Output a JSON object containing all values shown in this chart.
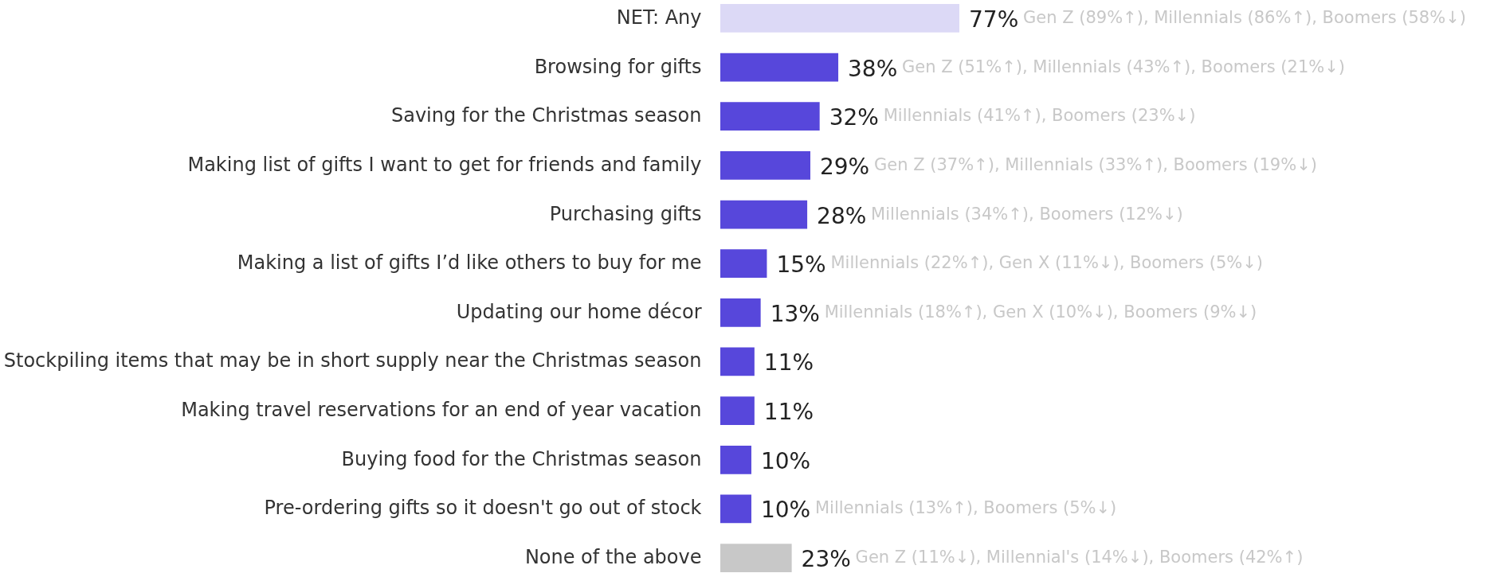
{
  "chart_data": {
    "type": "bar",
    "orientation": "horizontal",
    "categories": [
      "NET: Any",
      "Browsing for gifts",
      "Saving for the Christmas season",
      "Making list of gifts I want to get for friends and family",
      "Purchasing gifts",
      "Making a list of gifts I’d like others to buy for me",
      "Updating our home décor",
      "Stockpiling items that may be in short supply near the Christmas season",
      "Making travel reservations for an end of year vacation",
      "Buying food for the Christmas season",
      "Pre-ordering gifts so it doesn't go out of stock",
      "None of the above"
    ],
    "values": [
      77,
      38,
      32,
      29,
      28,
      15,
      13,
      11,
      11,
      10,
      10,
      23
    ],
    "value_labels": [
      "77%",
      "38%",
      "32%",
      "29%",
      "28%",
      "15%",
      "13%",
      "11%",
      "11%",
      "10%",
      "10%",
      "23%"
    ],
    "colors": [
      "#dcd9f6",
      "#5747db",
      "#5747db",
      "#5747db",
      "#5747db",
      "#5747db",
      "#5747db",
      "#5747db",
      "#5747db",
      "#5747db",
      "#5747db",
      "#c8c8c8"
    ],
    "annotations": [
      "Gen Z (89%↑), Millennials (86%↑), Boomers (58%↓)",
      "Gen Z (51%↑), Millennials (43%↑), Boomers (21%↓)",
      "Millennials (41%↑), Boomers (23%↓)",
      "Gen Z (37%↑), Millennials (33%↑), Boomers (19%↓)",
      "Millennials (34%↑), Boomers (12%↓)",
      "Millennials (22%↑), Gen X (11%↓), Boomers (5%↓)",
      "Millennials (18%↑), Gen X (10%↓), Boomers (9%↓)",
      null,
      null,
      null,
      "Millennials (13%↑), Boomers (5%↓)",
      "Gen Z  (11%↓), Millennial's  (14%↓), Boomers (42%↑)"
    ],
    "grid": false
  }
}
